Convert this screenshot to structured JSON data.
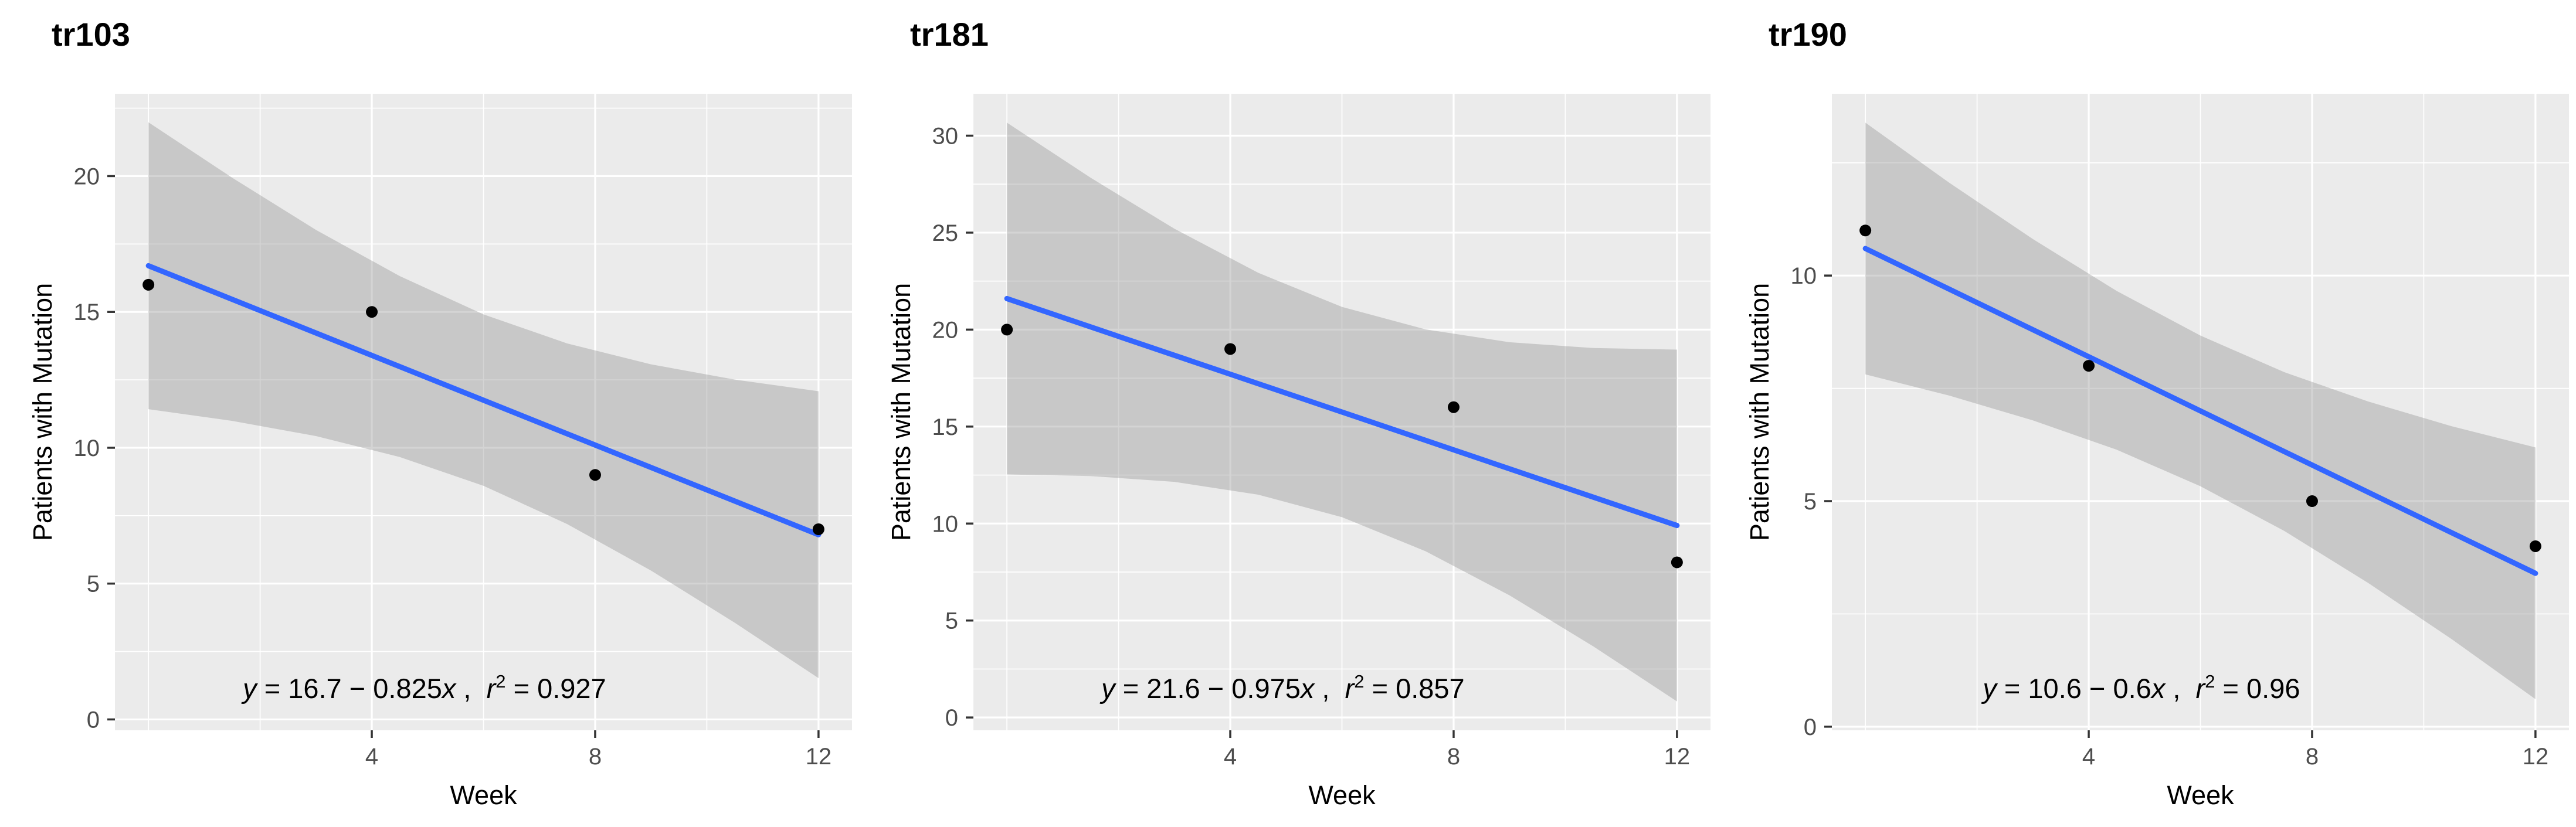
{
  "page": {
    "background": "#FFFFFF"
  },
  "figure": {
    "xlabel": "Week",
    "ylabel": "Patients with Mutation",
    "x_ticks": [
      4,
      8,
      12
    ],
    "x_minor": [
      0,
      2,
      6,
      10
    ],
    "xlim": [
      -0.6,
      12.6
    ],
    "style": {
      "panel_bg": "#EBEBEB",
      "grid_color": "#FFFFFF",
      "band_fill": "#989898",
      "band_opacity": 0.42,
      "line_color": "#3366FF",
      "point_color": "#000000",
      "tick_mark_color": "#333333",
      "axis_text_color": "#4D4D4D",
      "title_color": "#000000",
      "axis_title_color": "#000000",
      "equation_color": "#000000"
    }
  },
  "chart_data": [
    {
      "type": "scatter",
      "title": "tr103",
      "xlabel": "Week",
      "ylabel": "Patients with Mutation",
      "x": [
        0,
        4,
        8,
        12
      ],
      "y": [
        16,
        15,
        9,
        7
      ],
      "y_ticks": [
        0,
        5,
        10,
        15,
        20
      ],
      "y_minor": [
        2.5,
        7.5,
        12.5,
        17.5,
        22.5
      ],
      "ylim": [
        -0.4,
        23.03
      ],
      "fit": {
        "intercept": 16.7,
        "slope": -0.825,
        "r2": 0.927,
        "x_range": [
          0,
          12
        ],
        "method": "lm",
        "ci_level": 0.95
      },
      "band": {
        "x": [
          0,
          1.5,
          3,
          4.5,
          6,
          7.5,
          9,
          10.5,
          12
        ],
        "upper": [
          21.98,
          19.94,
          18.02,
          16.32,
          14.91,
          13.84,
          13.07,
          12.51,
          12.08
        ],
        "lower": [
          11.42,
          10.99,
          10.43,
          9.66,
          8.6,
          7.19,
          5.48,
          3.56,
          1.52
        ]
      },
      "equation_text": "y = 16.7 − 0.825x ,  r² = 0.927",
      "equation_parts": [
        {
          "t": "y",
          "style": "italic"
        },
        {
          "t": " = 16.7 − 0.825",
          "style": "normal"
        },
        {
          "t": "x",
          "style": "italic"
        },
        {
          "t": " ,  ",
          "style": "normal"
        },
        {
          "t": "r",
          "style": "italic"
        },
        {
          "t": "2",
          "style": "super"
        },
        {
          "t": " = 0.927",
          "style": "normal"
        }
      ]
    },
    {
      "type": "scatter",
      "title": "tr181",
      "xlabel": "Week",
      "ylabel": "Patients with Mutation",
      "x": [
        0,
        4,
        8,
        12
      ],
      "y": [
        20,
        19,
        16,
        8
      ],
      "y_ticks": [
        0,
        5,
        10,
        15,
        20,
        25,
        30
      ],
      "y_minor": [
        2.5,
        7.5,
        12.5,
        17.5,
        22.5,
        27.5
      ],
      "ylim": [
        -0.66,
        32.16
      ],
      "fit": {
        "intercept": 21.6,
        "slope": -0.975,
        "r2": 0.857,
        "x_range": [
          0,
          12
        ],
        "method": "lm",
        "ci_level": 0.95
      },
      "band": {
        "x": [
          0,
          1.5,
          3,
          4.5,
          6,
          7.5,
          9,
          10.5,
          12
        ],
        "upper": [
          30.67,
          27.83,
          25.2,
          22.93,
          21.17,
          20.01,
          19.35,
          19.05,
          18.97
        ],
        "lower": [
          12.53,
          12.45,
          12.15,
          11.49,
          10.33,
          8.57,
          6.3,
          3.67,
          0.83
        ]
      },
      "equation_text": "y = 21.6 − 0.975x ,  r² = 0.857",
      "equation_parts": [
        {
          "t": "y",
          "style": "italic"
        },
        {
          "t": " = 21.6 − 0.975",
          "style": "normal"
        },
        {
          "t": "x",
          "style": "italic"
        },
        {
          "t": " ,  ",
          "style": "normal"
        },
        {
          "t": "r",
          "style": "italic"
        },
        {
          "t": "2",
          "style": "super"
        },
        {
          "t": " = 0.857",
          "style": "normal"
        }
      ]
    },
    {
      "type": "scatter",
      "title": "tr190",
      "xlabel": "Week",
      "ylabel": "Patients with Mutation",
      "x": [
        0,
        4,
        8,
        12
      ],
      "y": [
        11,
        8,
        5,
        4
      ],
      "y_ticks": [
        0,
        5,
        10
      ],
      "y_minor": [
        2.5,
        7.5,
        12.5
      ],
      "ylim": [
        -0.08,
        14.03
      ],
      "fit": {
        "intercept": 10.6,
        "slope": -0.6,
        "r2": 0.96,
        "x_range": [
          0,
          12
        ],
        "method": "lm",
        "ci_level": 0.95
      },
      "band": {
        "x": [
          0,
          1.5,
          3,
          4.5,
          6,
          7.5,
          9,
          10.5,
          12
        ],
        "upper": [
          13.39,
          12.06,
          10.81,
          9.66,
          8.67,
          7.86,
          7.21,
          6.66,
          6.19
        ],
        "lower": [
          7.81,
          7.34,
          6.79,
          6.14,
          5.33,
          4.34,
          3.19,
          1.94,
          0.61
        ]
      },
      "equation_text": "y = 10.6 − 0.6x ,  r² = 0.96",
      "equation_parts": [
        {
          "t": "y",
          "style": "italic"
        },
        {
          "t": " = 10.6 − 0.6",
          "style": "normal"
        },
        {
          "t": "x",
          "style": "italic"
        },
        {
          "t": " ,  ",
          "style": "normal"
        },
        {
          "t": "r",
          "style": "italic"
        },
        {
          "t": "2",
          "style": "super"
        },
        {
          "t": " = 0.96",
          "style": "normal"
        }
      ]
    }
  ]
}
